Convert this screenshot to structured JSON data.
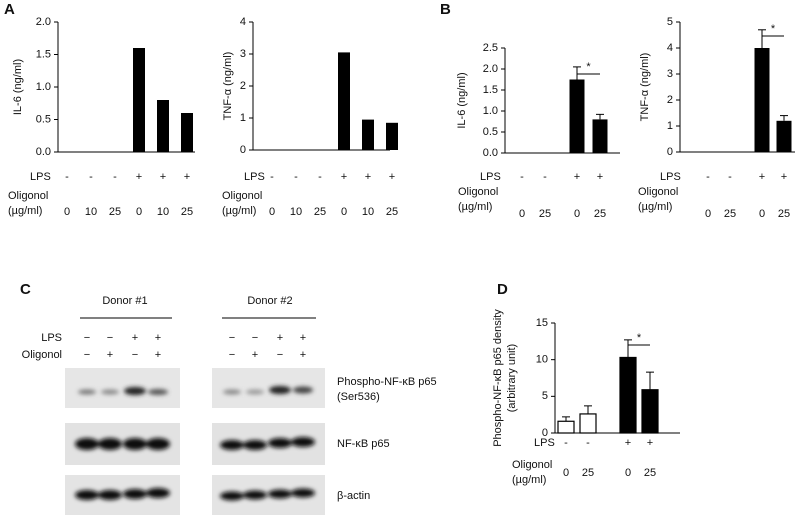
{
  "chart_data": [
    {
      "type": "bar",
      "panel": "A",
      "ylabel": "IL-6 (ng/ml)",
      "ylim": [
        0,
        2
      ],
      "yticks": [
        {
          "value": 0,
          "label": "0.0"
        },
        {
          "value": 0.5,
          "label": "0.5"
        },
        {
          "value": 1,
          "label": "1.0"
        },
        {
          "value": 1.5,
          "label": "1.5"
        },
        {
          "value": 2,
          "label": "2.0"
        }
      ],
      "lps_label": "LPS",
      "lps": [
        "-",
        "-",
        "-",
        "+",
        "+",
        "+"
      ],
      "oligonol_label": [
        "Oligonol",
        "(µg/ml)"
      ],
      "categories": [
        "0",
        "10",
        "25",
        "0",
        "10",
        "25"
      ],
      "values": [
        0,
        0,
        0,
        1.6,
        0.8,
        0.6
      ],
      "color": "#000000"
    },
    {
      "type": "bar",
      "ylabel": "TNF-α (ng/ml)",
      "ylim": [
        0,
        4
      ],
      "yticks": [
        0,
        1,
        2,
        3,
        4
      ],
      "lps_label": "LPS",
      "lps": [
        "-",
        "-",
        "-",
        "+",
        "+",
        "+"
      ],
      "oligonol_label": [
        "Oligonol",
        "(µg/ml)"
      ],
      "categories": [
        "0",
        "10",
        "25",
        "0",
        "10",
        "25"
      ],
      "values": [
        0,
        0,
        0,
        3.05,
        0.95,
        0.85
      ],
      "color": "#000000"
    },
    {
      "type": "bar",
      "panel": "B",
      "ylabel": "IL-6 (ng/ml)",
      "ylim": [
        0,
        2.5
      ],
      "yticks": [
        {
          "value": 0,
          "label": "0.0"
        },
        {
          "value": 0.5,
          "label": "0.5"
        },
        {
          "value": 1,
          "label": "1.0"
        },
        {
          "value": 1.5,
          "label": "1.5"
        },
        {
          "value": 2,
          "label": "2.0"
        },
        {
          "value": 2.5,
          "label": "2.5"
        }
      ],
      "lps_label": "LPS",
      "lps": [
        "-",
        "-",
        "+",
        "+"
      ],
      "oligonol_label": [
        "Oligonol",
        "(µg/ml)"
      ],
      "categories": [
        "0",
        "25",
        "0",
        "25"
      ],
      "values": [
        0,
        0,
        1.75,
        0.8
      ],
      "errors": [
        null,
        null,
        0.3,
        0.12
      ],
      "annotation": "*",
      "color": "#000000"
    },
    {
      "type": "bar",
      "ylabel": "TNF-α (ng/ml)",
      "ylim": [
        0,
        5
      ],
      "yticks": [
        0,
        1,
        2,
        3,
        4,
        5
      ],
      "lps_label": "LPS",
      "lps": [
        "-",
        "-",
        "+",
        "+"
      ],
      "oligonol_label": [
        "Oligonol",
        "(µg/ml)"
      ],
      "categories": [
        "0",
        "25",
        "0",
        "25"
      ],
      "values": [
        0,
        0,
        4.0,
        1.2
      ],
      "errors": [
        null,
        null,
        0.7,
        0.2
      ],
      "annotation": "*",
      "color": "#000000"
    },
    {
      "type": "bar",
      "panel": "D",
      "ylabel": [
        "Phospho-NF-κB p65 density",
        "(arbitrary unit)"
      ],
      "ylim": [
        0,
        15
      ],
      "yticks": [
        0,
        5,
        10,
        15
      ],
      "lps_label": "LPS",
      "lps": [
        "-",
        "-",
        "+",
        "+"
      ],
      "oligonol_label": [
        "Oligonol",
        "(µg/ml)"
      ],
      "categories": [
        "0",
        "25",
        "0",
        "25"
      ],
      "values": [
        1.6,
        2.6,
        10.3,
        5.9
      ],
      "errors": [
        0.6,
        1.1,
        2.4,
        2.4
      ],
      "annotation": "*",
      "colors": [
        "#ffffff",
        "#ffffff",
        "#000000",
        "#000000"
      ]
    }
  ],
  "blot": {
    "panel": "C",
    "donors": [
      "Donor #1",
      "Donor #2"
    ],
    "lps_label": "LPS",
    "oligonol_label": "Oligonol",
    "lps": [
      "−",
      "−",
      "+",
      "+"
    ],
    "oligonol": [
      "−",
      "+",
      "−",
      "+"
    ],
    "rows": [
      [
        "Phospho-NF-κB p65",
        "(Ser536)"
      ],
      [
        "NF-κB p65"
      ],
      [
        "β-actin"
      ]
    ]
  }
}
